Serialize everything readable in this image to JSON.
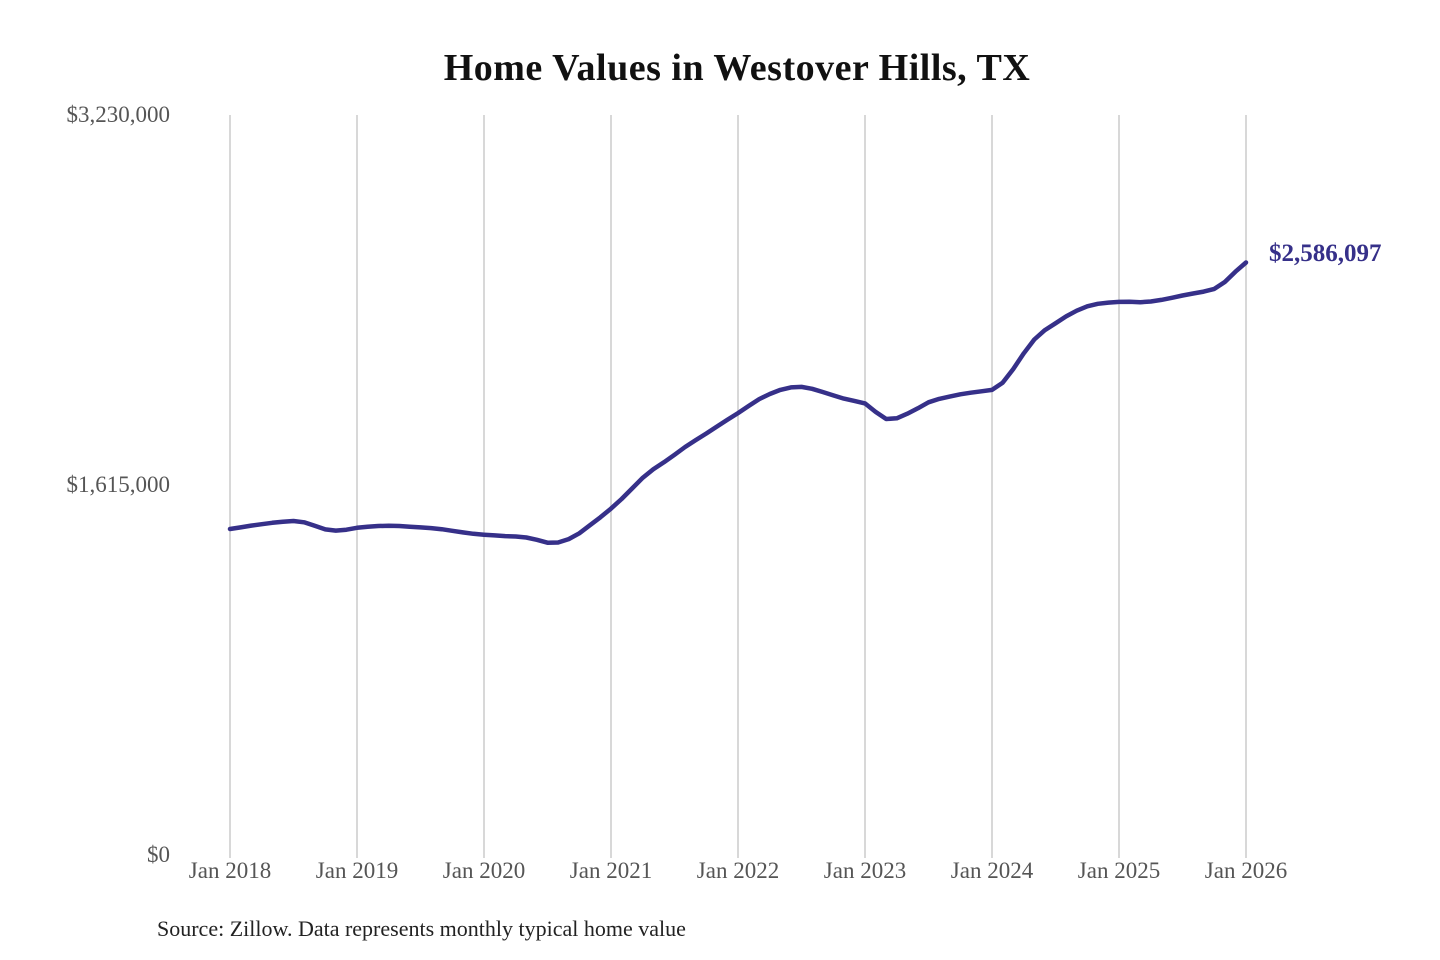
{
  "chart_data": {
    "type": "line",
    "title": "Home Values in Westover Hills, TX",
    "source_note": "Source: Zillow. Data represents monthly typical home value",
    "end_label": "$2,586,097",
    "end_value": 2586097,
    "line_color": "#363089",
    "grid_color": "#cccccc",
    "tick_label_color": "#555555",
    "grid": "vertical-only",
    "legend": "none",
    "ylim": [
      0,
      3230000
    ],
    "y_ticks": [
      {
        "value": 0,
        "label": "$0"
      },
      {
        "value": 1615000,
        "label": "$1,615,000"
      },
      {
        "value": 3230000,
        "label": "$3,230,000"
      }
    ],
    "x_ticks": [
      "Jan 2018",
      "Jan 2019",
      "Jan 2020",
      "Jan 2021",
      "Jan 2022",
      "Jan 2023",
      "Jan 2024",
      "Jan 2025",
      "Jan 2026"
    ],
    "x_start": "2018-01",
    "x_frequency": "monthly",
    "series": [
      {
        "name": "Typical home value",
        "values": [
          1423000,
          1430000,
          1438000,
          1444000,
          1450000,
          1455000,
          1458000,
          1452000,
          1437000,
          1421000,
          1416000,
          1420000,
          1428000,
          1433000,
          1436000,
          1437000,
          1436000,
          1433000,
          1430000,
          1427000,
          1422000,
          1415000,
          1408000,
          1402000,
          1398000,
          1395000,
          1392000,
          1390000,
          1386000,
          1376000,
          1363000,
          1364000,
          1379000,
          1404000,
          1439000,
          1474000,
          1512000,
          1554000,
          1600000,
          1647000,
          1684000,
          1714000,
          1747000,
          1781000,
          1811000,
          1840000,
          1870000,
          1900000,
          1929000,
          1960000,
          1990000,
          2012000,
          2030000,
          2041000,
          2043000,
          2035000,
          2021000,
          2006000,
          1992000,
          1982000,
          1971000,
          1934000,
          1903000,
          1906000,
          1926000,
          1950000,
          1976000,
          1991000,
          2001000,
          2011000,
          2018000,
          2024000,
          2030000,
          2061000,
          2121000,
          2190000,
          2250000,
          2291000,
          2321000,
          2351000,
          2376000,
          2395000,
          2406000,
          2411000,
          2414000,
          2415000,
          2413000,
          2416000,
          2423000,
          2432000,
          2442000,
          2451000,
          2459000,
          2471000,
          2501000,
          2546000,
          2586097
        ]
      }
    ]
  }
}
